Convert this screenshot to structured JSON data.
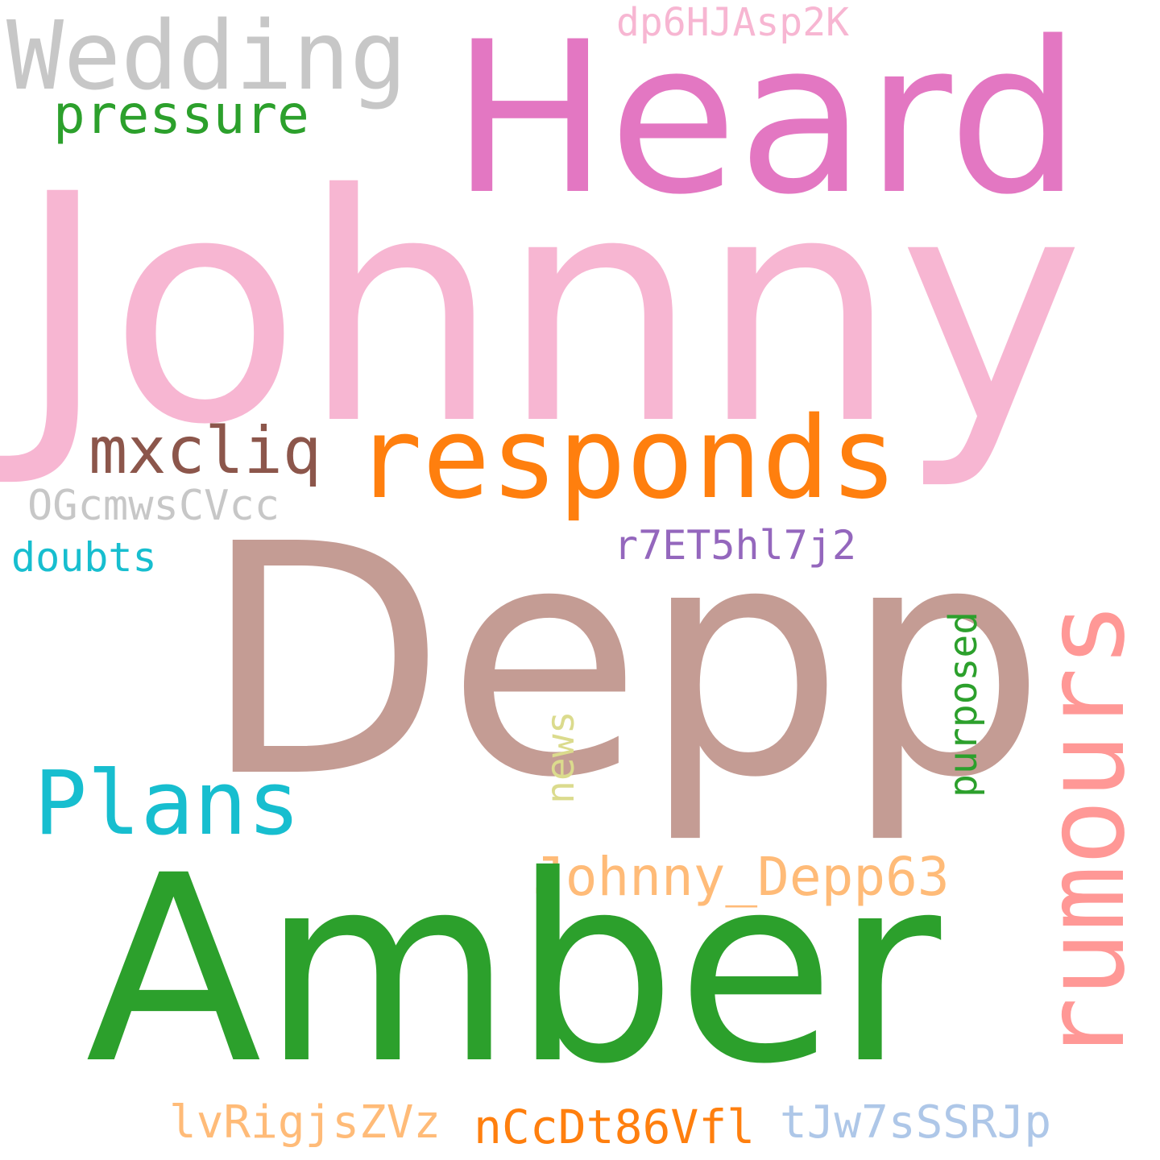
{
  "words": {
    "heard": "Heard",
    "johnny": "Johnny",
    "wedding": "Wedding",
    "pressure": "pressure",
    "dp6HJAsp2K": "dp6HJAsp2K",
    "mxcliq": "mxcliq",
    "responds": "responds",
    "OGcmwsCVcc": "OGcmwsCVcc",
    "doubts": "doubts",
    "r7ET5hl7j2": "r7ET5hl7j2",
    "depp": "Depp",
    "rumours": "rumours",
    "purposed": "purposed",
    "news": "news",
    "plans": "Plans",
    "johnny_depp63": "Johnny_Depp63",
    "amber": "Amber",
    "lvRigjsZVz": "lvRigjsZVz",
    "nCcDt86Vfl": "nCcDt86Vfl",
    "tJw7sSSRJp": "tJw7sSSRJp"
  },
  "colors": {
    "heard": "#e377c2",
    "johnny": "#f7b6d2",
    "wedding": "#c7c7c7",
    "pressure": "#2ca02c",
    "dp6HJAsp2K": "#f7b6d2",
    "mxcliq": "#8c564b",
    "responds": "#ff7f0e",
    "OGcmwsCVcc": "#c7c7c7",
    "doubts": "#17becf",
    "r7ET5hl7j2": "#9467bd",
    "depp": "#c49c94",
    "rumours": "#ff9896",
    "purposed": "#2ca02c",
    "news": "#dbdb8d",
    "plans": "#17becf",
    "johnny_depp63": "#ffbb78",
    "amber": "#2ca02c",
    "lvRigjsZVz": "#ffbb78",
    "nCcDt86Vfl": "#ff7f0e",
    "tJw7sSSRJp": "#aec7e8"
  }
}
